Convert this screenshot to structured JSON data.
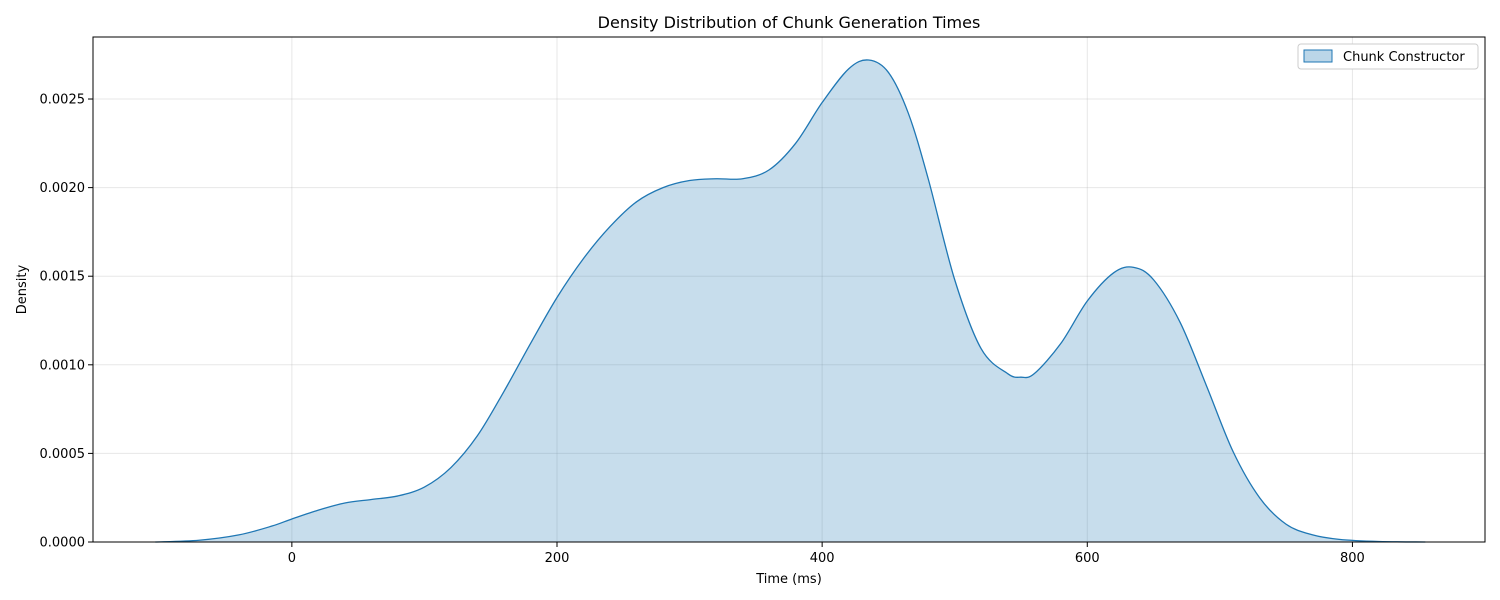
{
  "chart_data": {
    "type": "area",
    "title": "Density Distribution of Chunk Generation Times",
    "xlabel": "Time (ms)",
    "ylabel": "Density",
    "xlim": [
      -150,
      900
    ],
    "ylim": [
      0,
      0.00285
    ],
    "grid": true,
    "legend_position": "top-right",
    "x_ticks": [
      0,
      200,
      400,
      600,
      800
    ],
    "x_tick_labels": [
      "0",
      "200",
      "400",
      "600",
      "800"
    ],
    "y_ticks": [
      0,
      0.0005,
      0.001,
      0.0015,
      0.002,
      0.0025
    ],
    "y_tick_labels": [
      "0.0000",
      "0.0005",
      "0.0010",
      "0.0015",
      "0.0020",
      "0.0025"
    ],
    "series": [
      {
        "name": "Chunk Constructor",
        "color": "#1f77b4",
        "fill_color": "#1f77b4",
        "fill_opacity": 0.25,
        "x": [
          -103,
          -70,
          -40,
          -15,
          0,
          20,
          40,
          60,
          80,
          100,
          120,
          140,
          160,
          180,
          200,
          220,
          240,
          260,
          280,
          300,
          320,
          340,
          360,
          380,
          400,
          420,
          435,
          450,
          465,
          480,
          500,
          520,
          540,
          550,
          560,
          580,
          600,
          620,
          635,
          650,
          670,
          690,
          710,
          730,
          750,
          770,
          790,
          820,
          855
        ],
        "y": [
          0.0,
          1e-05,
          4e-05,
          9e-05,
          0.00013,
          0.00018,
          0.00022,
          0.00024,
          0.00026,
          0.00031,
          0.00042,
          0.0006,
          0.00085,
          0.00112,
          0.00138,
          0.0016,
          0.00178,
          0.00192,
          0.002,
          0.00204,
          0.00205,
          0.00205,
          0.0021,
          0.00225,
          0.00248,
          0.00267,
          0.00272,
          0.00265,
          0.00242,
          0.00205,
          0.00148,
          0.00109,
          0.00095,
          0.00093,
          0.00095,
          0.00112,
          0.00136,
          0.00152,
          0.00155,
          0.00148,
          0.00124,
          0.00088,
          0.00051,
          0.00025,
          0.0001,
          4e-05,
          1.5e-05,
          3e-06,
          0.0
        ]
      }
    ]
  }
}
